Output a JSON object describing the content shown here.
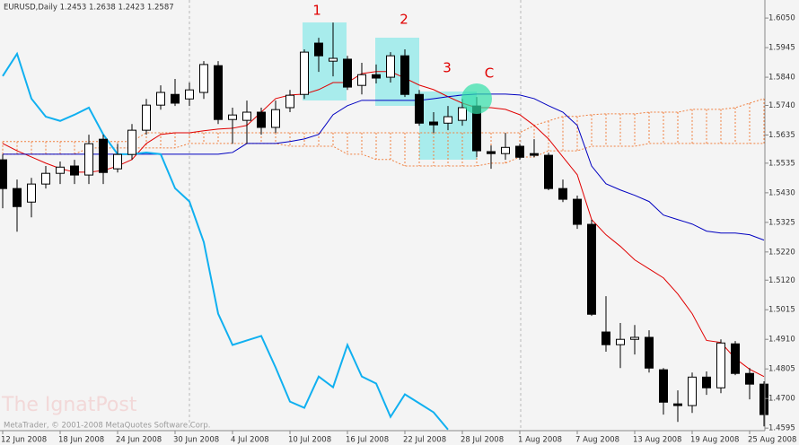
{
  "chart_data": {
    "type": "candlestick",
    "header": "EURUSD,Daily  1.2453 1.2638 1.2423 1.2587",
    "watermark": "The IgnatPost",
    "copyright": "MetaTrader, © 2001-2008 MetaQuotes Software Corp.",
    "annotations": [
      "1",
      "2",
      "3",
      "C"
    ],
    "categories": [
      "12 Jun 2008",
      null,
      null,
      null,
      "18 Jun 2008",
      null,
      null,
      null,
      "24 Jun 2008",
      null,
      null,
      null,
      "30 Jun 2008",
      null,
      null,
      null,
      "4 Jul 2008",
      null,
      null,
      null,
      "10 Jul 2008",
      null,
      null,
      null,
      "16 Jul 2008",
      null,
      null,
      null,
      "22 Jul 2008",
      null,
      null,
      null,
      "28 Jul 2008",
      null,
      null,
      null,
      "1 Aug 2008",
      null,
      null,
      null,
      "7 Aug 2008",
      null,
      null,
      null,
      "13 Aug 2008",
      null,
      null,
      null,
      "19 Aug 2008",
      null,
      null,
      null,
      "25 Aug 2008",
      null
    ],
    "open": [
      1.5547,
      1.5445,
      1.5397,
      1.5461,
      1.5499,
      1.5525,
      1.5493,
      1.562,
      1.5515,
      1.5566,
      1.5652,
      1.5741,
      1.5779,
      1.5763,
      1.5786,
      1.5881,
      1.569,
      1.5687,
      1.5716,
      1.5662,
      1.5732,
      1.5779,
      1.5961,
      1.5897,
      1.5904,
      1.5811,
      1.5849,
      1.584,
      1.5916,
      1.5779,
      1.5681,
      1.5677,
      1.5687,
      1.5738,
      1.5576,
      1.5569,
      1.5595,
      1.5569,
      1.5563,
      1.5445,
      1.5407,
      1.5318,
      1.4936,
      1.4891,
      1.491,
      1.4917,
      1.4802,
      1.4681,
      1.4675,
      1.4776,
      1.4738,
      1.4894,
      1.4789,
      1.4751
    ],
    "high": [
      1.5566,
      1.5477,
      1.5483,
      1.5525,
      1.5541,
      1.5547,
      1.5636,
      1.5636,
      1.5604,
      1.5674,
      1.5763,
      1.5811,
      1.5834,
      1.5821,
      1.5897,
      1.5897,
      1.5732,
      1.5757,
      1.5732,
      1.5757,
      1.5795,
      1.5939,
      1.598,
      1.6034,
      1.5916,
      1.5891,
      1.5885,
      1.5929,
      1.5939,
      1.5795,
      1.5716,
      1.5738,
      1.5763,
      1.577,
      1.5598,
      1.5642,
      1.5604,
      1.562,
      1.5572,
      1.5477,
      1.542,
      1.5334,
      1.5063,
      1.4968,
      1.4961,
      1.4942,
      1.4808,
      1.4729,
      1.4792,
      1.4796,
      1.491,
      1.4904,
      1.4808,
      1.4761
    ],
    "low": [
      1.5375,
      1.5292,
      1.5343,
      1.5445,
      1.5461,
      1.5461,
      1.5461,
      1.5461,
      1.5502,
      1.5547,
      1.5636,
      1.5725,
      1.5738,
      1.5738,
      1.5763,
      1.5674,
      1.5604,
      1.5604,
      1.5636,
      1.5642,
      1.5716,
      1.5763,
      1.5859,
      1.5843,
      1.5795,
      1.5779,
      1.5818,
      1.5821,
      1.577,
      1.5668,
      1.5642,
      1.5652,
      1.5668,
      1.5556,
      1.5515,
      1.5547,
      1.5547,
      1.5556,
      1.5439,
      1.5397,
      1.5302,
      1.4993,
      1.4866,
      1.4808,
      1.4856,
      1.4792,
      1.4643,
      1.4617,
      1.4649,
      1.4713,
      1.4719,
      1.4783,
      1.4697,
      1.4601
    ],
    "close": [
      1.5445,
      1.5381,
      1.5461,
      1.5499,
      1.5521,
      1.5493,
      1.5604,
      1.5502,
      1.5566,
      1.5652,
      1.5741,
      1.5786,
      1.5748,
      1.5795,
      1.5885,
      1.569,
      1.5706,
      1.5716,
      1.5662,
      1.5725,
      1.5776,
      1.5929,
      1.5916,
      1.5907,
      1.5805,
      1.5849,
      1.5837,
      1.5916,
      1.5779,
      1.5677,
      1.5671,
      1.57,
      1.5732,
      1.5579,
      1.5569,
      1.5591,
      1.5556,
      1.5563,
      1.5445,
      1.5407,
      1.5318,
      1.4999,
      1.4891,
      1.491,
      1.4917,
      1.4808,
      1.4687,
      1.4675,
      1.4776,
      1.4738,
      1.4897,
      1.4789,
      1.4751,
      1.4643
    ],
    "up_color": "#ffffff",
    "down_color": "#000000",
    "lines": [
      {
        "color": "#e00000",
        "width": 1,
        "values": [
          1.5605,
          1.5579,
          1.5557,
          1.5535,
          1.5516,
          1.5503,
          1.5503,
          1.5509,
          1.5525,
          1.5548,
          1.5605,
          1.5637,
          1.5643,
          1.5643,
          1.565,
          1.5656,
          1.5659,
          1.5669,
          1.5716,
          1.5764,
          1.5777,
          1.578,
          1.5796,
          1.5821,
          1.5821,
          1.5853,
          1.586,
          1.586,
          1.5837,
          1.5812,
          1.5796,
          1.5771,
          1.5748,
          1.5732,
          1.5732,
          1.5726,
          1.5707,
          1.5669,
          1.5621,
          1.5557,
          1.5494,
          1.5335,
          1.5281,
          1.524,
          1.5192,
          1.516,
          1.5128,
          1.5071,
          1.5001,
          1.4906,
          1.4899,
          1.4842,
          1.4804,
          1.4778
        ]
      },
      {
        "color": "#0000c0",
        "width": 1,
        "values": [
          1.5567,
          1.5567,
          1.5567,
          1.5567,
          1.5567,
          1.5567,
          1.5567,
          1.5567,
          1.5567,
          1.5567,
          1.5567,
          1.5567,
          1.5567,
          1.5567,
          1.5567,
          1.5567,
          1.5573,
          1.5605,
          1.5605,
          1.5605,
          1.5612,
          1.5621,
          1.5637,
          1.5707,
          1.5739,
          1.5758,
          1.5758,
          1.5758,
          1.5758,
          1.5758,
          1.5764,
          1.5771,
          1.5777,
          1.578,
          1.578,
          1.578,
          1.5777,
          1.5764,
          1.5739,
          1.5716,
          1.5669,
          1.5525,
          1.5462,
          1.544,
          1.5421,
          1.5399,
          1.5351,
          1.5335,
          1.5319,
          1.5294,
          1.5287,
          1.5287,
          1.5281,
          1.5262
        ]
      },
      {
        "color": "#10b0f0",
        "width": 2,
        "values": [
          1.5844,
          1.5923,
          1.5764,
          1.57,
          1.5685,
          1.5707,
          1.5732,
          1.5637,
          1.5567,
          1.5567,
          1.5573,
          1.5567,
          1.5446,
          1.5399,
          1.5255,
          1.5001,
          1.489,
          1.4906,
          1.4922,
          1.481,
          1.4689,
          1.4667,
          1.4778,
          1.474,
          1.489,
          1.4778,
          1.4753,
          1.4635,
          1.4715,
          1.4683,
          1.4651,
          1.459,
          null,
          null,
          null,
          null,
          null,
          null,
          null,
          null,
          null,
          null,
          null,
          null,
          null,
          null,
          null,
          null,
          null,
          null,
          null,
          null,
          null,
          null
        ]
      }
    ],
    "cloud": {
      "color": "#f08040",
      "upper": [
        1.5612,
        1.5612,
        1.5612,
        1.5612,
        1.5612,
        1.5612,
        1.5612,
        1.5612,
        1.5612,
        1.5612,
        1.5643,
        1.5643,
        1.5643,
        1.5643,
        1.5643,
        1.5643,
        1.5643,
        1.5643,
        1.5643,
        1.5643,
        1.5643,
        1.5643,
        1.5643,
        1.5643,
        1.5643,
        1.5643,
        1.5643,
        1.5643,
        1.5643,
        1.5643,
        1.5643,
        1.5643,
        1.5643,
        1.5643,
        1.5643,
        1.5643,
        1.5643,
        1.5669,
        1.5685,
        1.5701,
        1.5701,
        1.5707,
        1.571,
        1.571,
        1.571,
        1.5716,
        1.5716,
        1.5716,
        1.5726,
        1.5726,
        1.5726,
        1.5732,
        1.5748,
        1.5764
      ],
      "lower": [
        1.5567,
        1.5567,
        1.5567,
        1.5567,
        1.5567,
        1.5567,
        1.5589,
        1.5589,
        1.5589,
        1.5589,
        1.5589,
        1.5589,
        1.5589,
        1.5605,
        1.5605,
        1.5605,
        1.5605,
        1.5605,
        1.5605,
        1.5605,
        1.5595,
        1.5595,
        1.5595,
        1.5595,
        1.5567,
        1.5567,
        1.5548,
        1.5548,
        1.5525,
        1.5525,
        1.5525,
        1.5525,
        1.5525,
        1.5525,
        1.5535,
        1.5535,
        1.5557,
        1.5557,
        1.5579,
        1.5579,
        1.5579,
        1.5595,
        1.5595,
        1.5595,
        1.5595,
        1.5605,
        1.5605,
        1.5605,
        1.5605,
        1.5605,
        1.5605,
        1.5605,
        1.5605,
        1.5605
      ]
    },
    "ylim": [
      1.4586,
      1.6114
    ],
    "yticks": [
      {
        "value": 1.605,
        "label": "1.6050"
      },
      1.5945,
      {
        "value": 1.584,
        "label": "1.5840"
      },
      {
        "value": 1.574,
        "label": "1.5740"
      },
      1.5635,
      1.5535,
      {
        "value": 1.543,
        "label": "1.5430"
      },
      1.5325,
      {
        "value": 1.522,
        "label": "1.5220"
      },
      {
        "value": 1.512,
        "label": "1.5120"
      },
      1.5015,
      {
        "value": 1.491,
        "label": "1.4910"
      },
      1.4805,
      {
        "value": 1.47,
        "label": "1.4700"
      },
      1.4595
    ]
  }
}
